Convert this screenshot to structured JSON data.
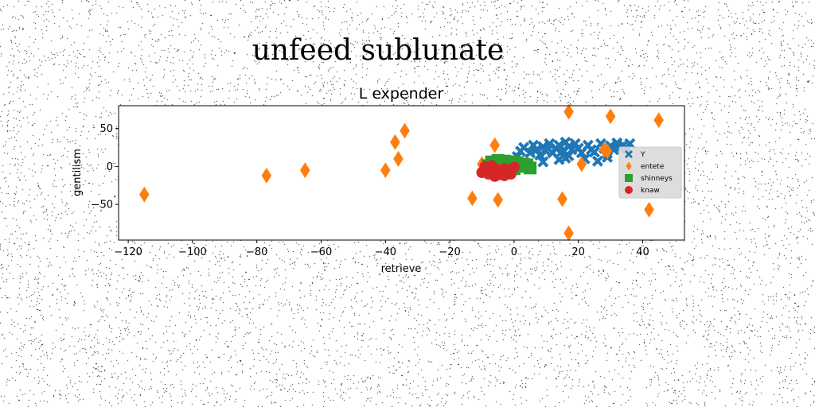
{
  "figure": {
    "suptitle": "unfeed sublunate"
  },
  "chart_data": {
    "type": "scatter",
    "title": "L expender",
    "xlabel": "retrieve",
    "ylabel": "gentilism",
    "xlim": [
      -123,
      53
    ],
    "ylim": [
      -97,
      80
    ],
    "xticks": [
      -120,
      -100,
      -80,
      -60,
      -40,
      -20,
      0,
      20,
      40
    ],
    "yticks": [
      -50,
      0,
      50
    ],
    "grid": false,
    "legend": {
      "placement": "right",
      "entries": [
        "Y",
        "entete",
        "shinneys",
        "knaw"
      ]
    },
    "series": [
      {
        "name": "Y",
        "color": "#1f77b4",
        "marker": "x",
        "points": [
          [
            1,
            13
          ],
          [
            2,
            20
          ],
          [
            3,
            25
          ],
          [
            5,
            18
          ],
          [
            6,
            28
          ],
          [
            7,
            22
          ],
          [
            8,
            15
          ],
          [
            9,
            26
          ],
          [
            10,
            20
          ],
          [
            11,
            30
          ],
          [
            12,
            18
          ],
          [
            13,
            24
          ],
          [
            14,
            28
          ],
          [
            15,
            20
          ],
          [
            16,
            32
          ],
          [
            17,
            26
          ],
          [
            17,
            14
          ],
          [
            18,
            22
          ],
          [
            19,
            30
          ],
          [
            20,
            24
          ],
          [
            21,
            18
          ],
          [
            23,
            28
          ],
          [
            24,
            22
          ],
          [
            25,
            19
          ],
          [
            27,
            30
          ],
          [
            28,
            24
          ],
          [
            29,
            17
          ],
          [
            30,
            27
          ],
          [
            31,
            22
          ],
          [
            32,
            31
          ],
          [
            33,
            25
          ],
          [
            34,
            28
          ],
          [
            35,
            24
          ],
          [
            36,
            30
          ],
          [
            29,
            12
          ],
          [
            26,
            7
          ],
          [
            22,
            10
          ],
          [
            14,
            9
          ],
          [
            9,
            6
          ],
          [
            16,
            11
          ]
        ]
      },
      {
        "name": "entete",
        "color": "#ff7f0e",
        "marker": "D",
        "points": [
          [
            -115,
            -37
          ],
          [
            -77,
            -12
          ],
          [
            -65,
            -5
          ],
          [
            -40,
            -5
          ],
          [
            -37,
            32
          ],
          [
            -36,
            10
          ],
          [
            -34,
            47
          ],
          [
            -13,
            -42
          ],
          [
            -6,
            28
          ],
          [
            -5,
            -44
          ],
          [
            15,
            -43
          ],
          [
            17,
            72
          ],
          [
            17,
            -88
          ],
          [
            21,
            3
          ],
          [
            28,
            22
          ],
          [
            30,
            66
          ],
          [
            42,
            -57
          ],
          [
            45,
            61
          ],
          [
            -10,
            3
          ],
          [
            -8,
            -2
          ],
          [
            29,
            20
          ]
        ]
      },
      {
        "name": "shinneys",
        "color": "#2ca02c",
        "marker": "s",
        "points": [
          [
            -7,
            6
          ],
          [
            -5,
            8
          ],
          [
            -3,
            7
          ],
          [
            -1,
            6
          ],
          [
            1,
            5
          ],
          [
            3,
            3
          ],
          [
            5,
            -2
          ],
          [
            -6,
            -4
          ],
          [
            -4,
            -6
          ],
          [
            -2,
            -5
          ],
          [
            0,
            -3
          ],
          [
            2,
            0
          ],
          [
            4,
            2
          ],
          [
            -8,
            1
          ]
        ]
      },
      {
        "name": "knaw",
        "color": "#d62728",
        "marker": "o",
        "points": [
          [
            -10,
            -8
          ],
          [
            -9,
            -4
          ],
          [
            -8,
            -10
          ],
          [
            -7,
            -6
          ],
          [
            -6,
            -2
          ],
          [
            -5,
            -11
          ],
          [
            -4,
            -7
          ],
          [
            -3,
            -3
          ],
          [
            -2,
            -9
          ],
          [
            -1,
            -5
          ],
          [
            0,
            -1
          ],
          [
            -6,
            -13
          ],
          [
            -3,
            -12
          ],
          [
            -9,
            0
          ],
          [
            -7,
            1
          ],
          [
            -1,
            -10
          ]
        ]
      }
    ]
  }
}
